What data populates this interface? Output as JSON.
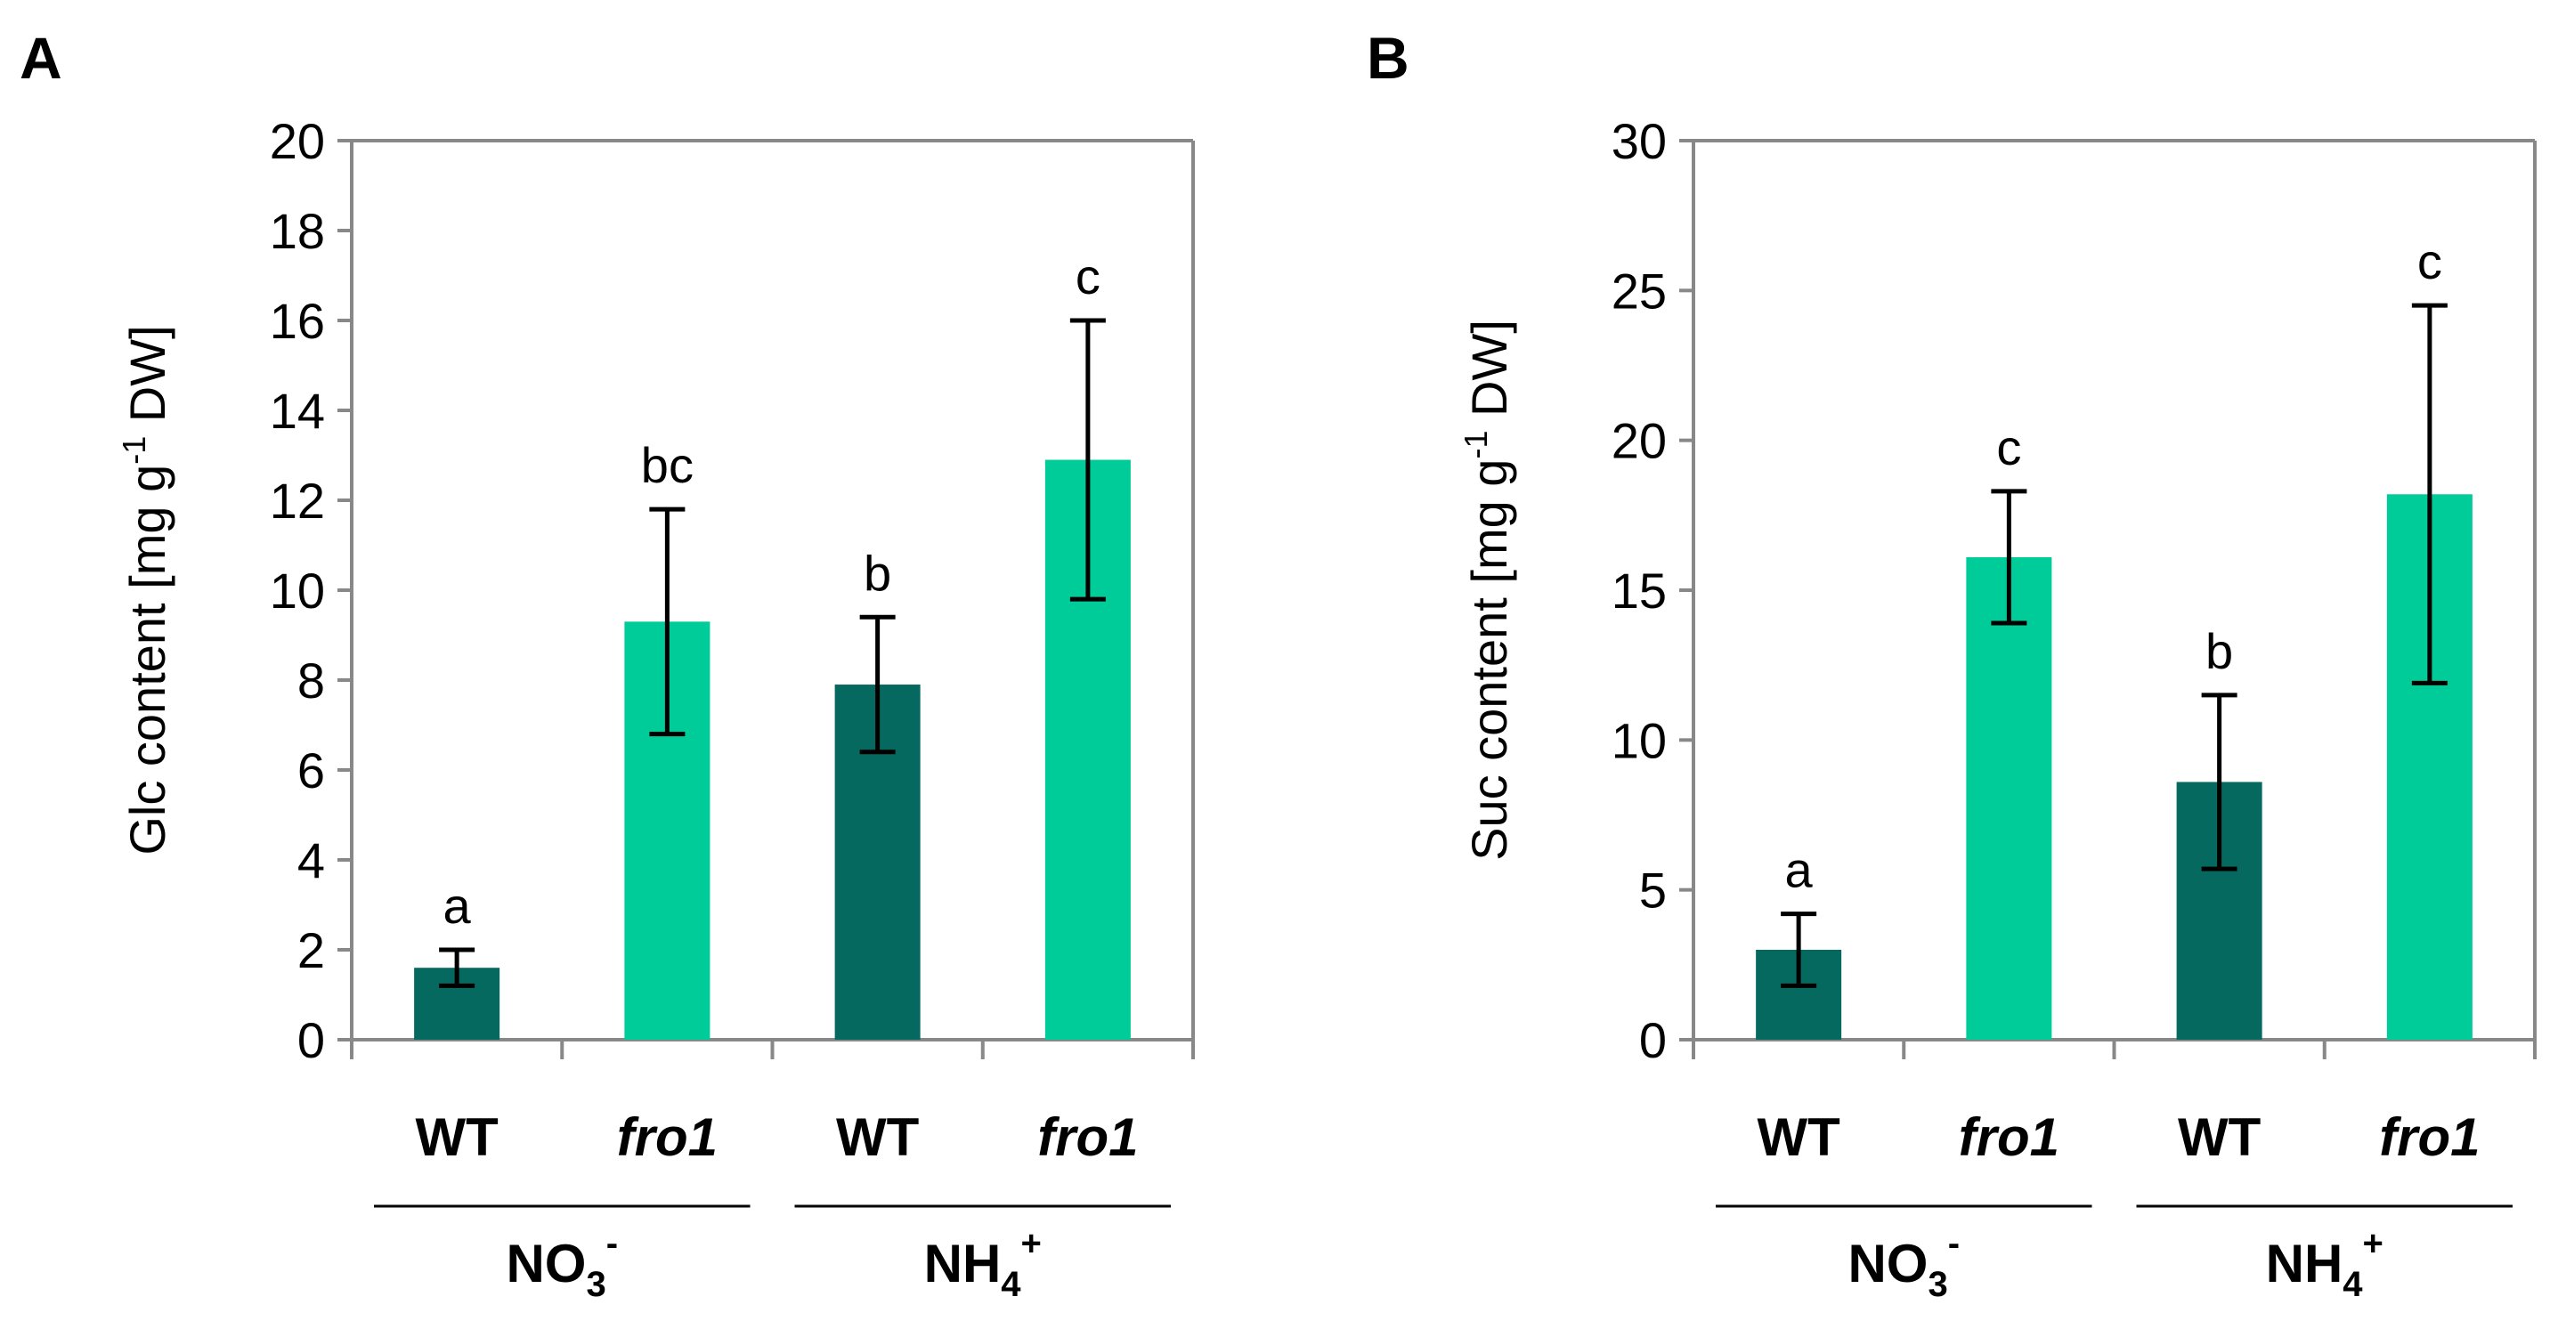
{
  "colors": {
    "wt": "#05695F",
    "fro1": "#00CC9A",
    "axis": "#888888"
  },
  "chart_data": [
    {
      "type": "bar",
      "panel_label": "A",
      "ylabel_main": "Glc content [mg g",
      "ylabel_sup": "-1",
      "ylabel_tail": " DW]",
      "ylim": [
        0,
        20
      ],
      "yticks": [
        0,
        2,
        4,
        6,
        8,
        10,
        12,
        14,
        16,
        18,
        20
      ],
      "categories": [
        "WT",
        "fro1",
        "WT",
        "fro1"
      ],
      "values": [
        1.6,
        9.3,
        7.9,
        12.9
      ],
      "errors": [
        0.4,
        2.5,
        1.5,
        3.1
      ],
      "significance": [
        "a",
        "bc",
        "b",
        "c"
      ],
      "groups": [
        {
          "base": "NO",
          "sub": "3",
          "sup": "-"
        },
        {
          "base": "NH",
          "sub": "4",
          "sup": "+"
        }
      ]
    },
    {
      "type": "bar",
      "panel_label": "B",
      "ylabel_main": "Suc content [mg g",
      "ylabel_sup": "-1",
      "ylabel_tail": " DW]",
      "ylim": [
        0,
        30
      ],
      "yticks": [
        0,
        5,
        10,
        15,
        20,
        25,
        30
      ],
      "categories": [
        "WT",
        "fro1",
        "WT",
        "fro1"
      ],
      "values": [
        3.0,
        16.1,
        8.6,
        18.2
      ],
      "errors": [
        1.2,
        2.2,
        2.9,
        6.3
      ],
      "significance": [
        "a",
        "c",
        "b",
        "c"
      ],
      "groups": [
        {
          "base": "NO",
          "sub": "3",
          "sup": "-"
        },
        {
          "base": "NH",
          "sub": "4",
          "sup": "+"
        }
      ]
    }
  ]
}
